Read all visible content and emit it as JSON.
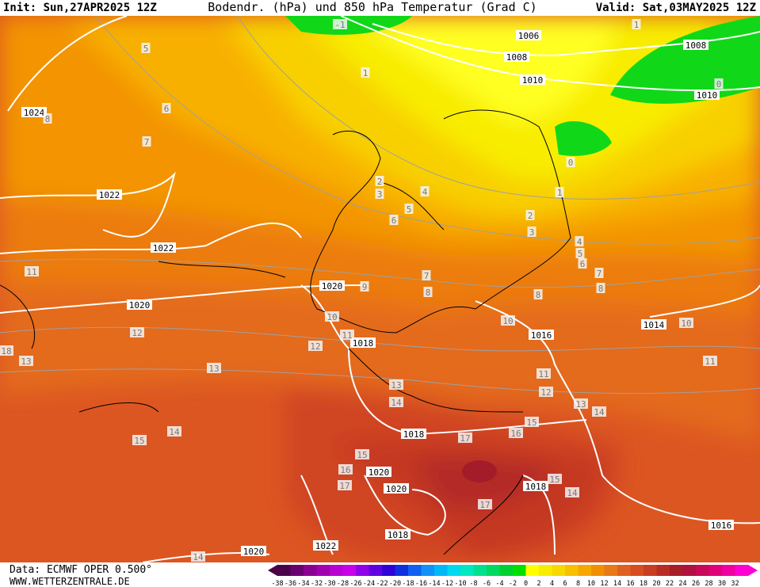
{
  "header": {
    "init": "Init: Sun,27APR2025 12Z",
    "title": "Bodendr. (hPa) und 850 hPa Temperatur (Grad C)",
    "valid": "Valid: Sat,03MAY2025 12Z"
  },
  "footer": {
    "source": "Data: ECMWF OPER 0.500°",
    "site": "WWW.WETTERZENTRALE.DE"
  },
  "isobars": [
    1024,
    1022,
    1022,
    1020,
    1020,
    1018,
    1018,
    1020,
    1020,
    1018,
    1022,
    1020,
    1016,
    1014,
    1016,
    1018,
    1010,
    1010,
    1008,
    1008,
    1006
  ],
  "temperature_labels": [
    5,
    6,
    7,
    8,
    11,
    12,
    13,
    13,
    14,
    15,
    14,
    18,
    -1,
    1,
    1,
    0,
    0,
    1,
    2,
    3,
    4,
    5,
    6,
    7,
    8,
    8,
    2,
    3,
    4,
    5,
    6,
    7,
    8,
    9,
    10,
    10,
    10,
    11,
    12,
    11,
    12,
    13,
    14,
    13,
    14,
    11,
    15,
    16,
    17,
    15,
    16,
    17,
    15,
    14,
    17
  ],
  "colorbar": {
    "labels": [
      -38,
      -36,
      -34,
      -32,
      -30,
      -28,
      -26,
      -24,
      -22,
      -20,
      -18,
      -16,
      -14,
      -12,
      -10,
      -8,
      -6,
      -4,
      -2,
      0,
      2,
      4,
      6,
      8,
      10,
      12,
      14,
      16,
      18,
      20,
      22,
      24,
      26,
      28,
      30,
      32
    ],
    "colors": [
      "#4a0048",
      "#6a0070",
      "#8a0090",
      "#a000b0",
      "#b800d0",
      "#c800e8",
      "#9000e8",
      "#6000e0",
      "#3000d8",
      "#1030e0",
      "#1060f0",
      "#1090f8",
      "#00b8f8",
      "#00d8f0",
      "#00e8c0",
      "#00e090",
      "#00d860",
      "#00d030",
      "#00e000",
      "#ffff00",
      "#f8ec00",
      "#f8d800",
      "#f8c000",
      "#f6a800",
      "#f09000",
      "#e87818",
      "#e06020",
      "#d84c20",
      "#c83c20",
      "#b82c24",
      "#a81c28",
      "#b01040",
      "#c80858",
      "#e00078",
      "#f000a0",
      "#ff00d0"
    ]
  }
}
